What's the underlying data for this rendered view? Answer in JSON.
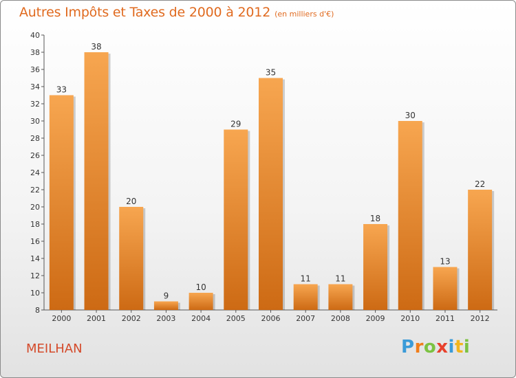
{
  "title": "Autres Impôts et Taxes de 2000 à 2012",
  "subtitle": "(en milliers d'€)",
  "commune": "MEILHAN",
  "brand": {
    "letters": [
      "P",
      "r",
      "o",
      "x",
      "i",
      "t",
      "i"
    ],
    "colors": [
      "#3a9bd8",
      "#f07d1a",
      "#7cc242",
      "#e8412c",
      "#3a9bd8",
      "#f2b51c",
      "#7cc242"
    ]
  },
  "colors": {
    "title": "#e06a1f",
    "bar_top": "#f7a650",
    "bar_bottom": "#cd6a14",
    "commune": "#d44a2a"
  },
  "chart_data": {
    "type": "bar",
    "title": "Autres Impôts et Taxes de 2000 à 2012",
    "subtitle": "(en milliers d'€)",
    "categories": [
      "2000",
      "2001",
      "2002",
      "2003",
      "2004",
      "2005",
      "2006",
      "2007",
      "2008",
      "2009",
      "2010",
      "2011",
      "2012"
    ],
    "values": [
      33,
      38,
      20,
      9,
      10,
      29,
      35,
      11,
      11,
      18,
      30,
      13,
      22
    ],
    "ylim": [
      8,
      40
    ],
    "yticks": [
      8,
      10,
      12,
      14,
      16,
      18,
      20,
      22,
      24,
      26,
      28,
      30,
      32,
      34,
      36,
      38,
      40
    ],
    "grid": false,
    "legend": "none"
  }
}
